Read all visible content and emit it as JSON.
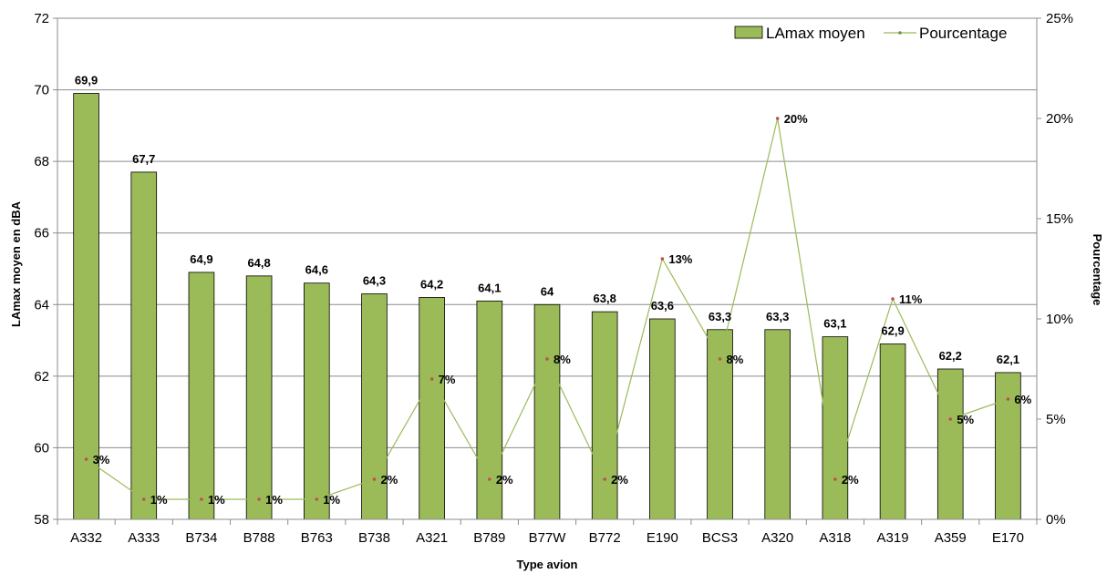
{
  "chart_data": {
    "type": "bar",
    "categories": [
      "A332",
      "A333",
      "B734",
      "B788",
      "B763",
      "B738",
      "A321",
      "B789",
      "B77W",
      "B772",
      "E190",
      "BCS3",
      "A320",
      "A318",
      "A319",
      "A359",
      "E170"
    ],
    "series": [
      {
        "name": "LAmax moyen",
        "type": "bar",
        "axis": "left",
        "color": "#9bbb59",
        "values": [
          69.9,
          67.7,
          64.9,
          64.8,
          64.6,
          64.3,
          64.2,
          64.1,
          64,
          63.8,
          63.6,
          63.3,
          63.3,
          63.1,
          62.9,
          62.2,
          62.1
        ],
        "labels": [
          "69,9",
          "67,7",
          "64,9",
          "64,8",
          "64,6",
          "64,3",
          "64,2",
          "64,1",
          "64",
          "63,8",
          "63,6",
          "63,3",
          "63,3",
          "63,1",
          "62,9",
          "62,2",
          "62,1"
        ]
      },
      {
        "name": "Pourcentage",
        "type": "line",
        "axis": "right",
        "color": "#9bbb59",
        "values": [
          3,
          1,
          1,
          1,
          1,
          2,
          7,
          2,
          8,
          2,
          13,
          8,
          20,
          2,
          11,
          5,
          6
        ],
        "labels": [
          "3%",
          "1%",
          "1%",
          "1%",
          "1%",
          "2%",
          "7%",
          "2%",
          "8%",
          "2%",
          "13%",
          "8%",
          "20%",
          "2%",
          "11%",
          "5%",
          "6%"
        ]
      }
    ],
    "xlabel": "Type avion",
    "ylabel": "LAmax moyen en dBA",
    "y2label": "Pourcentage",
    "ylim": [
      58,
      72
    ],
    "yticks": [
      "58",
      "60",
      "62",
      "64",
      "66",
      "68",
      "70",
      "72"
    ],
    "y2lim": [
      0,
      25
    ],
    "y2ticks": [
      "0%",
      "5%",
      "10%",
      "15%",
      "20%",
      "25%"
    ],
    "grid": true,
    "legend": "top-right"
  }
}
